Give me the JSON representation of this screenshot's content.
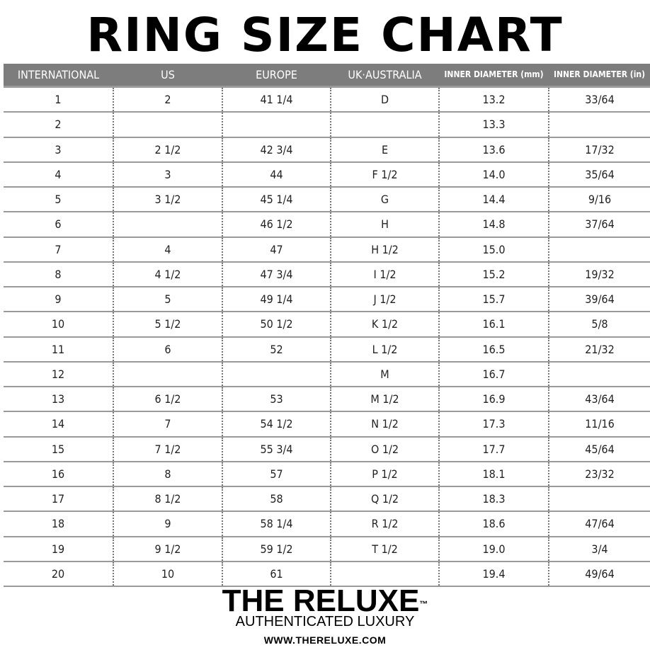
{
  "title": "RING SIZE CHART",
  "table": {
    "headers": [
      "INTERNATIONAL",
      "US",
      "EUROPE",
      "UK·AUSTRALIA",
      "INNER DIAMETER (mm)",
      "INNER DIAMETER (in)"
    ],
    "rows": [
      [
        "1",
        "2",
        "41 1/4",
        "D",
        "13.2",
        "33/64"
      ],
      [
        "2",
        "",
        "",
        "",
        "13.3",
        ""
      ],
      [
        "3",
        "2 1/2",
        "42 3/4",
        "E",
        "13.6",
        "17/32"
      ],
      [
        "4",
        "3",
        "44",
        "F 1/2",
        "14.0",
        "35/64"
      ],
      [
        "5",
        "3 1/2",
        "45 1/4",
        "G",
        "14.4",
        "9/16"
      ],
      [
        "6",
        "",
        "46 1/2",
        "H",
        "14.8",
        "37/64"
      ],
      [
        "7",
        "4",
        "47",
        "H 1/2",
        "15.0",
        ""
      ],
      [
        "8",
        "4 1/2",
        "47 3/4",
        "I 1/2",
        "15.2",
        "19/32"
      ],
      [
        "9",
        "5",
        "49 1/4",
        "J 1/2",
        "15.7",
        "39/64"
      ],
      [
        "10",
        "5 1/2",
        "50 1/2",
        "K 1/2",
        "16.1",
        "5/8"
      ],
      [
        "11",
        "6",
        "52",
        "L 1/2",
        "16.5",
        "21/32"
      ],
      [
        "12",
        "",
        "",
        "M",
        "16.7",
        ""
      ],
      [
        "13",
        "6 1/2",
        "53",
        "M 1/2",
        "16.9",
        "43/64"
      ],
      [
        "14",
        "7",
        "54 1/2",
        "N 1/2",
        "17.3",
        "11/16"
      ],
      [
        "15",
        "7 1/2",
        "55 3/4",
        "O 1/2",
        "17.7",
        "45/64"
      ],
      [
        "16",
        "8",
        "57",
        "P 1/2",
        "18.1",
        "23/32"
      ],
      [
        "17",
        "8 1/2",
        "58",
        "Q 1/2",
        "18.3",
        ""
      ],
      [
        "18",
        "9",
        "58 1/4",
        "R 1/2",
        "18.6",
        "47/64"
      ],
      [
        "19",
        "9 1/2",
        "59 1/2",
        "T 1/2",
        "19.0",
        "3/4"
      ],
      [
        "20",
        "10",
        "61",
        "",
        "19.4",
        "49/64"
      ]
    ]
  },
  "brand": {
    "name": "THE RELUXE",
    "trademark": "™",
    "tagline": "AUTHENTICATED LUXURY",
    "url": "WWW.THERELUXE.COM"
  },
  "colors": {
    "header_bg": "#7d7d7d",
    "header_text": "#ffffff"
  }
}
